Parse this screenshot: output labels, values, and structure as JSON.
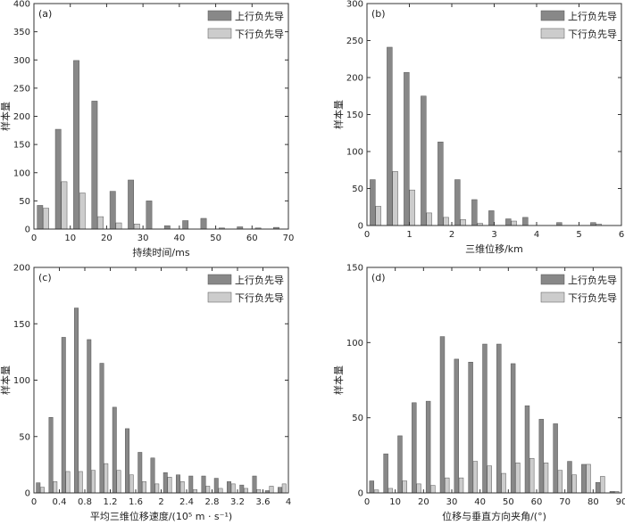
{
  "colors": {
    "up": "#888888",
    "down": "#cccccc",
    "bar_stroke": "#555555"
  },
  "chart_data": [
    {
      "type": "bar",
      "tag": "(a)",
      "xlabel": "持续时间/ms",
      "ylabel": "样本量",
      "xlim": [
        0,
        70
      ],
      "ylim": [
        0,
        400
      ],
      "xticks": [
        0,
        10,
        20,
        30,
        40,
        50,
        60,
        70
      ],
      "yticks": [
        0,
        50,
        100,
        150,
        200,
        250,
        300,
        350,
        400
      ],
      "xtick_labels": [
        "0",
        "10",
        "20",
        "30",
        "40",
        "50",
        "60",
        "70"
      ],
      "ytick_labels": [
        "0",
        "50",
        "100",
        "150",
        "200",
        "250",
        "300",
        "350",
        "400"
      ],
      "bin_width": 5,
      "x": [
        2.5,
        7.5,
        12.5,
        17.5,
        22.5,
        27.5,
        32.5,
        37.5,
        42.5,
        47.5,
        52.5,
        57.5,
        62.5,
        67.5
      ],
      "series": [
        {
          "name": "上行负先导",
          "values": [
            42,
            177,
            299,
            227,
            67,
            87,
            50,
            6,
            15,
            19,
            2,
            4,
            2,
            3
          ]
        },
        {
          "name": "下行负先导",
          "values": [
            37,
            84,
            64,
            22,
            11,
            9,
            0,
            0,
            0,
            0,
            0,
            0,
            0,
            0
          ]
        }
      ]
    },
    {
      "type": "bar",
      "tag": "(b)",
      "xlabel": "三维位移/km",
      "ylabel": "样本量",
      "xlim": [
        0,
        6
      ],
      "ylim": [
        0,
        300
      ],
      "xticks": [
        0,
        1,
        2,
        3,
        4,
        5,
        6
      ],
      "yticks": [
        0,
        50,
        100,
        150,
        200,
        250,
        300
      ],
      "xtick_labels": [
        "0",
        "1",
        "2",
        "3",
        "4",
        "5",
        "6"
      ],
      "ytick_labels": [
        "0",
        "50",
        "100",
        "150",
        "200",
        "250",
        "300"
      ],
      "bin_width": 0.4,
      "x": [
        0.2,
        0.6,
        1.0,
        1.4,
        1.8,
        2.2,
        2.6,
        3.0,
        3.4,
        3.8,
        4.2,
        4.6,
        5.0,
        5.4,
        5.8
      ],
      "series": [
        {
          "name": "上行负先导",
          "values": [
            62,
            241,
            207,
            175,
            113,
            62,
            35,
            20,
            9,
            11,
            0,
            4,
            0,
            4,
            0
          ]
        },
        {
          "name": "下行负先导",
          "values": [
            26,
            73,
            48,
            17,
            11,
            8,
            3,
            0,
            6,
            0,
            0,
            0,
            0,
            2,
            0
          ]
        }
      ]
    },
    {
      "type": "bar",
      "tag": "(c)",
      "xlabel": "平均三维位移速度/(10⁵ m · s⁻¹)",
      "ylabel": "样本量",
      "xlim": [
        0,
        4
      ],
      "ylim": [
        0,
        200
      ],
      "xticks": [
        0,
        0.4,
        0.8,
        1.2,
        1.6,
        2.0,
        2.4,
        2.8,
        3.2,
        3.6,
        4.0
      ],
      "yticks": [
        0,
        50,
        100,
        150,
        200
      ],
      "xtick_labels": [
        "0",
        "0.4",
        "0.8",
        "1.2",
        "1.6",
        "2",
        "2.4",
        "2.8",
        "3.2",
        "3.6",
        "4"
      ],
      "ytick_labels": [
        "0",
        "50",
        "100",
        "150",
        "200"
      ],
      "bin_width": 0.2,
      "x": [
        0.1,
        0.3,
        0.5,
        0.7,
        0.9,
        1.1,
        1.3,
        1.5,
        1.7,
        1.9,
        2.1,
        2.3,
        2.5,
        2.7,
        2.9,
        3.1,
        3.3,
        3.5,
        3.7,
        3.9
      ],
      "series": [
        {
          "name": "上行负先导",
          "values": [
            9,
            67,
            138,
            164,
            136,
            115,
            76,
            57,
            36,
            31,
            18,
            16,
            15,
            15,
            13,
            10,
            7,
            15,
            2,
            5
          ]
        },
        {
          "name": "下行负先导",
          "values": [
            5,
            10,
            19,
            19,
            20,
            26,
            20,
            16,
            10,
            8,
            14,
            10,
            3,
            6,
            4,
            8,
            4,
            3,
            6,
            8
          ]
        }
      ]
    },
    {
      "type": "bar",
      "tag": "(d)",
      "xlabel": "位移与垂直方向夹角/(°)",
      "ylabel": "样本量",
      "xlim": [
        0,
        90
      ],
      "ylim": [
        0,
        150
      ],
      "xticks": [
        0,
        10,
        20,
        30,
        40,
        50,
        60,
        70,
        80,
        90
      ],
      "yticks": [
        0,
        50,
        100,
        150
      ],
      "xtick_labels": [
        "0",
        "10",
        "20",
        "30",
        "40",
        "50",
        "60",
        "70",
        "80",
        "90"
      ],
      "ytick_labels": [
        "0",
        "50",
        "100",
        "150"
      ],
      "bin_width": 5,
      "x": [
        2.5,
        7.5,
        12.5,
        17.5,
        22.5,
        27.5,
        32.5,
        37.5,
        42.5,
        47.5,
        52.5,
        57.5,
        62.5,
        67.5,
        72.5,
        77.5,
        82.5,
        87.5
      ],
      "series": [
        {
          "name": "上行负先导",
          "values": [
            8,
            26,
            38,
            60,
            61,
            104,
            89,
            87,
            99,
            99,
            86,
            58,
            49,
            46,
            21,
            19,
            7,
            1
          ]
        },
        {
          "name": "下行负先导",
          "values": [
            2,
            3,
            8,
            6,
            5,
            10,
            10,
            21,
            18,
            13,
            20,
            23,
            20,
            15,
            12,
            19,
            11,
            1
          ]
        }
      ]
    }
  ]
}
